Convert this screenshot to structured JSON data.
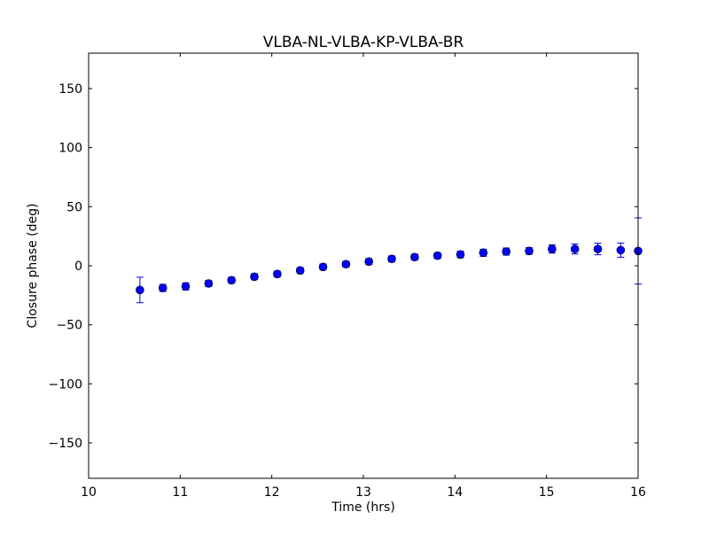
{
  "chart_data": {
    "type": "scatter",
    "title": "VLBA-NL-VLBA-KP-VLBA-BR",
    "xlabel": "Time (hrs)",
    "ylabel": "Closure phase (deg)",
    "xlim": [
      10,
      16
    ],
    "ylim": [
      -180,
      180
    ],
    "xticks": [
      10,
      11,
      12,
      13,
      14,
      15,
      16
    ],
    "xtick_labels": [
      "10",
      "11",
      "12",
      "13",
      "14",
      "15",
      "16"
    ],
    "yticks": [
      -150,
      -100,
      -50,
      0,
      50,
      100,
      150
    ],
    "ytick_labels": [
      "−150",
      "−100",
      "−50",
      "0",
      "50",
      "100",
      "150"
    ],
    "grid": false,
    "marker_color": "#0000ff",
    "series": [
      {
        "name": "closure phase",
        "x": [
          10.56,
          10.81,
          11.06,
          11.31,
          11.56,
          11.81,
          12.06,
          12.31,
          12.56,
          12.81,
          13.06,
          13.31,
          13.56,
          13.81,
          14.06,
          14.31,
          14.56,
          14.81,
          15.06,
          15.31,
          15.56,
          15.81,
          16.0
        ],
        "y": [
          -20.5,
          -18.8,
          -17.5,
          -15,
          -12.3,
          -9.3,
          -7,
          -4,
          -1,
          1.3,
          3.5,
          5.8,
          7.3,
          8.5,
          9.5,
          11,
          12,
          12.5,
          14.2,
          14.2,
          14.2,
          13.2,
          12.5
        ],
        "yerr": [
          10.8,
          3,
          3,
          2.5,
          2.5,
          2.5,
          2.5,
          2.5,
          2.5,
          2.5,
          2.5,
          2.5,
          2.5,
          2.5,
          2.8,
          3,
          3,
          2.8,
          3.5,
          4.2,
          4.9,
          6,
          28
        ]
      }
    ]
  }
}
